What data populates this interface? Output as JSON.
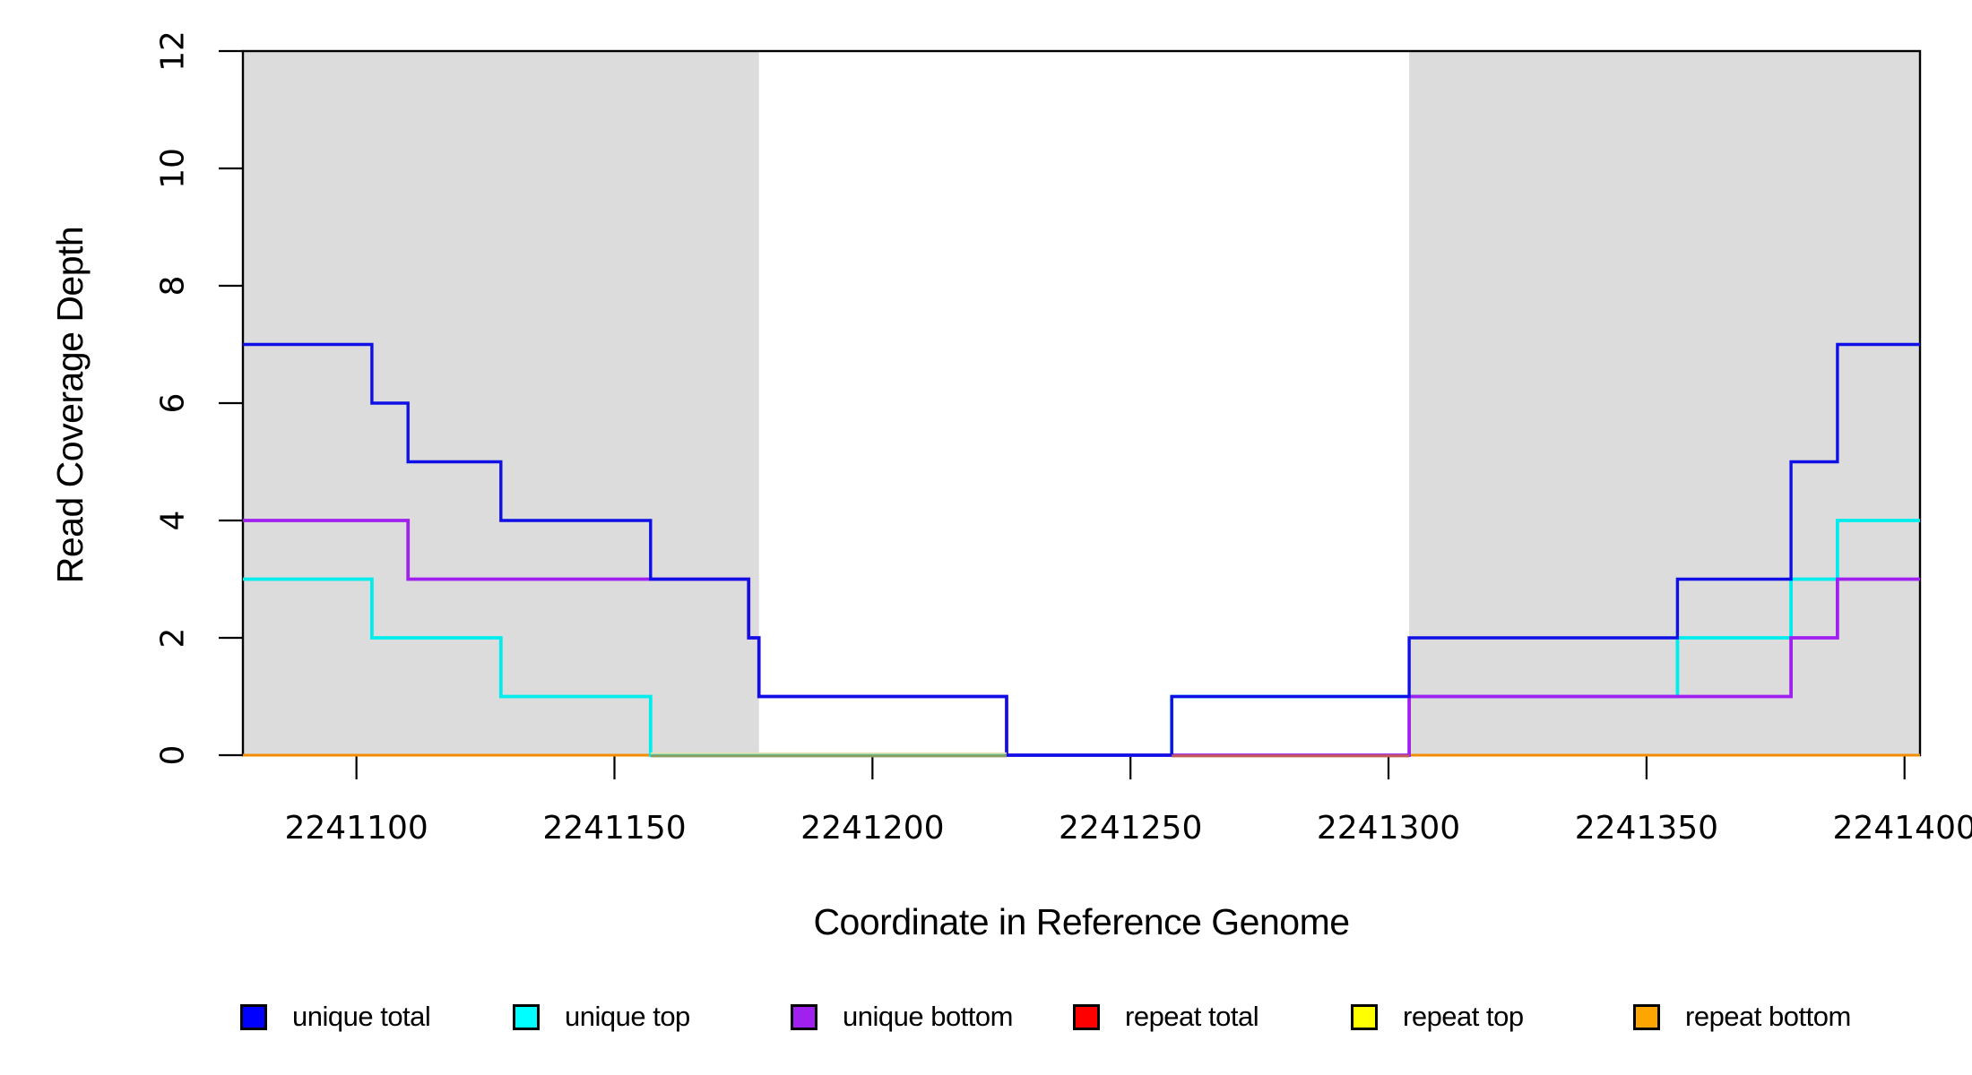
{
  "chart_data": {
    "type": "line",
    "subtype": "step-coverage-plot",
    "title": "",
    "xlabel": "Coordinate in Reference Genome",
    "ylabel": "Read Coverage Depth",
    "xlim": [
      2241078,
      2241403
    ],
    "ylim": [
      0,
      12
    ],
    "x_ticks": [
      "2241100",
      "2241150",
      "2241200",
      "2241250",
      "2241300",
      "2241350",
      "2241400"
    ],
    "y_ticks": [
      "0",
      "2",
      "4",
      "6",
      "8",
      "10",
      "12"
    ],
    "grid": false,
    "legend_position": "bottom",
    "shaded_regions": [
      {
        "name": "left-shaded-region",
        "from": 2241078,
        "to": 2241178,
        "color": "#DCDCDC"
      },
      {
        "name": "right-shaded-region",
        "from": 2241304,
        "to": 2241403,
        "color": "#DCDCDC"
      }
    ],
    "series": [
      {
        "name": "repeat total",
        "color": "#FF0000",
        "width": 3,
        "steps": [
          [
            2241078,
            0
          ]
        ]
      },
      {
        "name": "repeat top",
        "color": "#FFFF00",
        "width": 3,
        "steps": [
          [
            2241078,
            0
          ]
        ]
      },
      {
        "name": "repeat bottom",
        "color": "#F28C00",
        "width": 3,
        "steps": [
          [
            2241078,
            0
          ]
        ]
      },
      {
        "name": "unique top",
        "color": "#00EDED",
        "width": 3.8,
        "steps": [
          [
            2241078,
            3
          ],
          [
            2241103,
            2
          ],
          [
            2241128,
            1
          ],
          [
            2241157,
            0
          ],
          [
            2241258,
            1
          ],
          [
            2241356,
            2
          ],
          [
            2241378,
            3
          ],
          [
            2241387,
            4
          ]
        ]
      },
      {
        "name": "unique bottom",
        "color": "#A020F0",
        "width": 3.8,
        "steps": [
          [
            2241078,
            4
          ],
          [
            2241110,
            3
          ],
          [
            2241176,
            2
          ],
          [
            2241178,
            1
          ],
          [
            2241226,
            0
          ],
          [
            2241304,
            1
          ],
          [
            2241378,
            2
          ],
          [
            2241387,
            3
          ]
        ]
      },
      {
        "name": "unique total",
        "color": "#1010E6",
        "width": 3.4,
        "steps": [
          [
            2241078,
            7
          ],
          [
            2241103,
            6
          ],
          [
            2241110,
            5
          ],
          [
            2241128,
            4
          ],
          [
            2241157,
            3
          ],
          [
            2241176,
            2
          ],
          [
            2241178,
            1
          ],
          [
            2241226,
            0
          ],
          [
            2241258,
            1
          ],
          [
            2241304,
            2
          ],
          [
            2241356,
            3
          ],
          [
            2241378,
            5
          ],
          [
            2241387,
            7
          ]
        ]
      }
    ],
    "baseline_overlays": [
      {
        "from": 2241157,
        "to": 2241226,
        "color": "#8C9F61",
        "accent": "#EADFA8"
      },
      {
        "from": 2241258,
        "to": 2241304,
        "color": "#C45B5B",
        "accent": ""
      }
    ],
    "legend": {
      "items": [
        {
          "label": "unique total",
          "color": "#0000FF"
        },
        {
          "label": "unique top",
          "color": "#00FFFF"
        },
        {
          "label": "unique bottom",
          "color": "#A020F0"
        },
        {
          "label": "repeat total",
          "color": "#FF0000"
        },
        {
          "label": "repeat top",
          "color": "#FFFF00"
        },
        {
          "label": "repeat bottom",
          "color": "#FFA500"
        }
      ]
    }
  }
}
